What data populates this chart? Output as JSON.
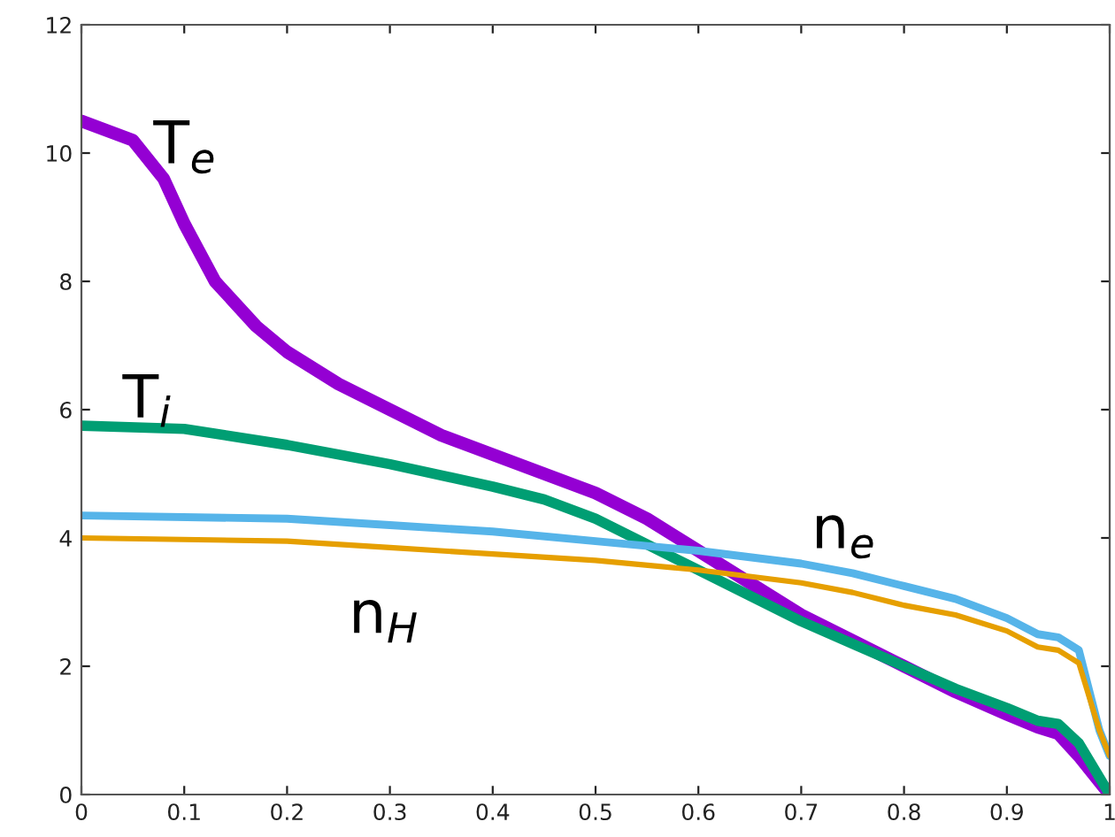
{
  "chart_data": {
    "type": "line",
    "xlim": [
      0,
      1
    ],
    "ylim": [
      0,
      12
    ],
    "xticks": [
      0,
      0.1,
      0.2,
      0.3,
      0.4,
      0.5,
      0.6,
      0.7,
      0.8,
      0.9,
      1
    ],
    "yticks": [
      0,
      2,
      4,
      6,
      8,
      10,
      12
    ],
    "grid": false,
    "legend": false,
    "series": [
      {
        "name": "T$_{e}$",
        "color": "#9400d3",
        "x": [
          0,
          0.05,
          0.08,
          0.1,
          0.13,
          0.17,
          0.2,
          0.25,
          0.3,
          0.35,
          0.4,
          0.45,
          0.5,
          0.55,
          0.6,
          0.65,
          0.7,
          0.75,
          0.8,
          0.85,
          0.9,
          0.93,
          0.95,
          0.97,
          1.0
        ],
        "values": [
          10.5,
          10.2,
          9.6,
          8.9,
          8.0,
          7.3,
          6.9,
          6.4,
          6.0,
          5.6,
          5.3,
          5.0,
          4.7,
          4.3,
          3.8,
          3.3,
          2.8,
          2.4,
          2.0,
          1.6,
          1.25,
          1.05,
          0.95,
          0.6,
          0
        ]
      },
      {
        "name": "T$_{i}$",
        "color": "#009e73",
        "x": [
          0,
          0.1,
          0.2,
          0.3,
          0.4,
          0.45,
          0.5,
          0.55,
          0.6,
          0.65,
          0.7,
          0.75,
          0.8,
          0.85,
          0.9,
          0.93,
          0.95,
          0.97,
          1.0
        ],
        "values": [
          5.75,
          5.7,
          5.45,
          5.15,
          4.8,
          4.6,
          4.3,
          3.9,
          3.5,
          3.1,
          2.7,
          2.35,
          2.0,
          1.65,
          1.35,
          1.15,
          1.1,
          0.8,
          0
        ]
      },
      {
        "name": "n$_{e}$",
        "color": "#56b4e9",
        "x": [
          0,
          0.2,
          0.3,
          0.4,
          0.5,
          0.6,
          0.65,
          0.7,
          0.75,
          0.8,
          0.85,
          0.9,
          0.93,
          0.95,
          0.97,
          0.99,
          1.0
        ],
        "values": [
          4.35,
          4.3,
          4.2,
          4.1,
          3.95,
          3.8,
          3.7,
          3.6,
          3.45,
          3.25,
          3.05,
          2.75,
          2.5,
          2.45,
          2.25,
          1.0,
          0.6
        ]
      },
      {
        "name": "n$_{H}$",
        "color": "#e69f00",
        "x": [
          0,
          0.2,
          0.3,
          0.4,
          0.5,
          0.6,
          0.7,
          0.75,
          0.8,
          0.85,
          0.9,
          0.93,
          0.95,
          0.97,
          0.99,
          1.0
        ],
        "values": [
          4.0,
          3.95,
          3.85,
          3.75,
          3.65,
          3.5,
          3.3,
          3.15,
          2.95,
          2.8,
          2.55,
          2.3,
          2.25,
          2.05,
          1.0,
          0.6
        ]
      }
    ]
  }
}
